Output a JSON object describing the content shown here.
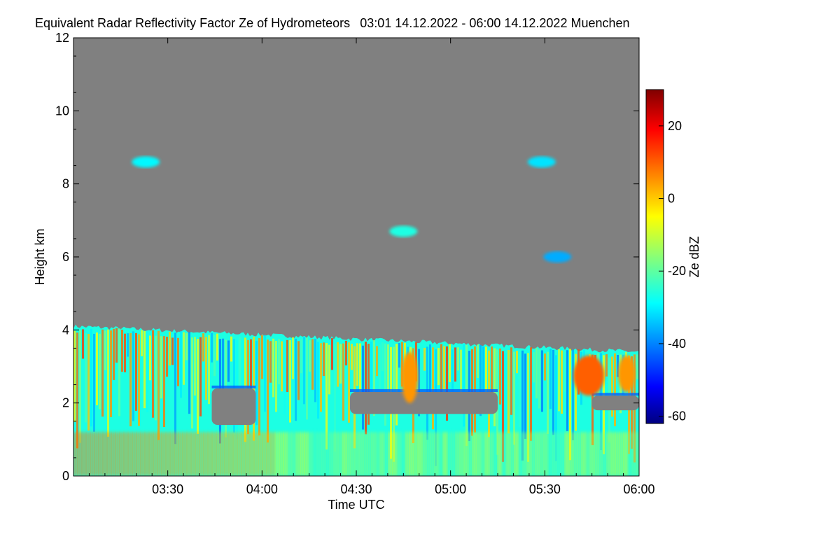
{
  "chart_data": {
    "type": "heatmap",
    "title": "Equivalent Radar Reflectivity Factor Ze of Hydrometeors",
    "period": "03:01 14.12.2022 - 06:00 14.12.2022",
    "location": "Muenchen",
    "xlabel": "Time UTC",
    "ylabel": "Height km",
    "x_range": [
      "03:01",
      "06:00"
    ],
    "x_ticks": [
      "03:30",
      "04:00",
      "04:30",
      "05:00",
      "05:30",
      "06:00"
    ],
    "ylim": [
      0,
      12
    ],
    "y_ticks": [
      0,
      2,
      4,
      6,
      8,
      10,
      12
    ],
    "background_color": "#808080",
    "colorbar": {
      "label": "Ze dBZ",
      "range": [
        -62,
        30
      ],
      "ticks": [
        20,
        0,
        -20,
        -40,
        -60
      ],
      "colormap": "jet"
    },
    "features": {
      "low_cloud_layer": {
        "top_km_start": 4.1,
        "top_km_end": 3.4,
        "ze_dbz_range": [
          -40,
          15
        ]
      },
      "clear_gaps": [
        {
          "from": "03:44",
          "to": "03:58",
          "height_km": [
            1.4,
            2.4
          ]
        },
        {
          "from": "04:28",
          "to": "05:15",
          "height_km": [
            1.7,
            2.3
          ]
        },
        {
          "from": "05:45",
          "to": "06:00",
          "height_km": [
            1.8,
            2.2
          ]
        }
      ],
      "strong_cells": [
        {
          "time": "04:47",
          "height_km": [
            2.0,
            3.4
          ],
          "ze_dbz": 5
        },
        {
          "time": "05:44",
          "height_km": [
            2.2,
            3.3
          ],
          "ze_dbz": 10
        },
        {
          "time": "05:56",
          "height_km": [
            2.3,
            3.3
          ],
          "ze_dbz": 5
        }
      ],
      "elevated_echoes": [
        {
          "time": "03:23",
          "height_km": 8.6,
          "ze_dbz": -28
        },
        {
          "time": "04:45",
          "height_km": 6.7,
          "ze_dbz": -25
        },
        {
          "time": "05:29",
          "height_km": 8.6,
          "ze_dbz": -30
        },
        {
          "time": "05:34",
          "height_km": 6.0,
          "ze_dbz": -35
        }
      ]
    }
  }
}
